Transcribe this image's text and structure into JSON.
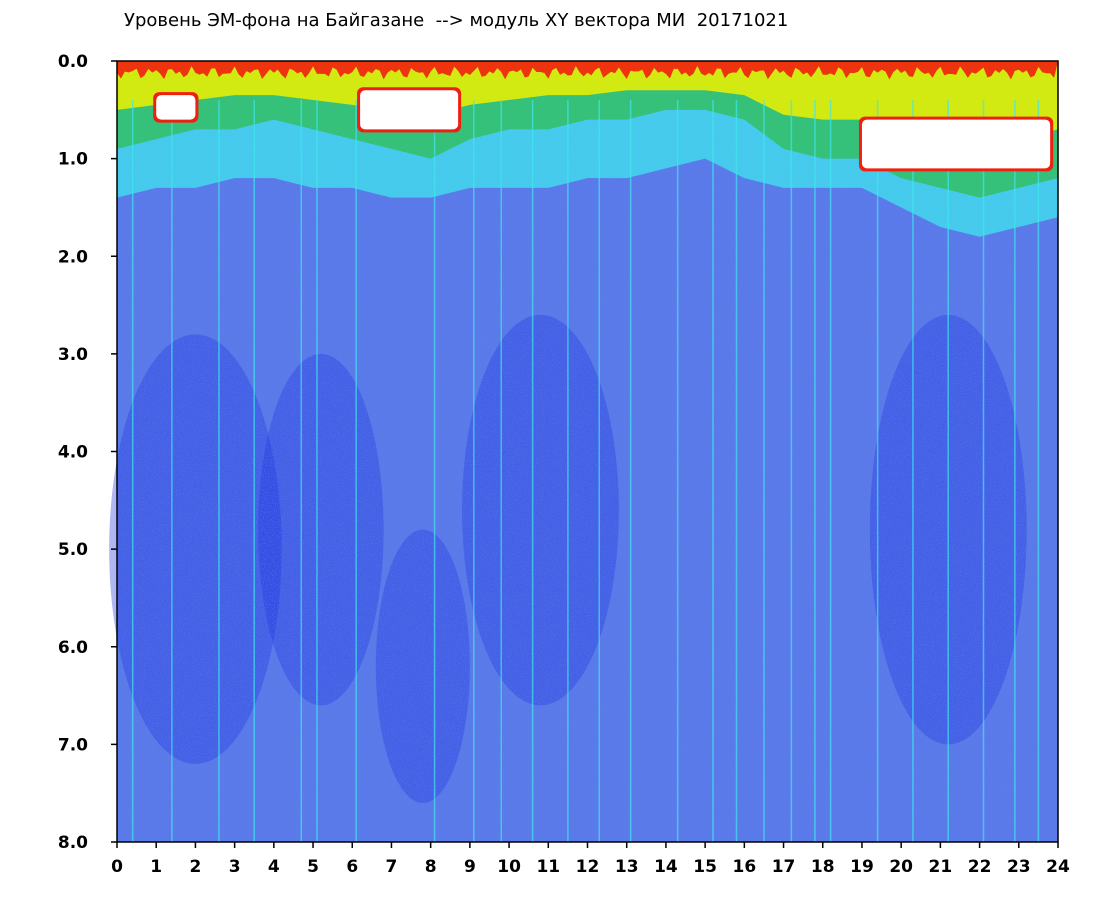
{
  "chart_data": {
    "type": "heatmap",
    "title": "Уровень ЭМ-фона на Байгазане  --> модуль XY вектора МИ  20171021",
    "xlabel": "",
    "ylabel": "",
    "xlim": [
      0,
      24
    ],
    "ylim": [
      0,
      8
    ],
    "y_axis_inverted": true,
    "x_ticks": [
      "0",
      "1",
      "2",
      "3",
      "4",
      "5",
      "6",
      "7",
      "8",
      "9",
      "10",
      "11",
      "12",
      "13",
      "14",
      "15",
      "16",
      "17",
      "18",
      "19",
      "20",
      "21",
      "22",
      "23",
      "24"
    ],
    "y_ticks": [
      "0.0",
      "1.0",
      "2.0",
      "3.0",
      "4.0",
      "5.0",
      "6.0",
      "7.0",
      "8.0"
    ],
    "color_scale": [
      "#1a2ee0",
      "#5b7be8",
      "#9aa6ee",
      "#3fe6ee",
      "#2cbc3c",
      "#eef000",
      "#f02010",
      "#ffffff"
    ],
    "level_profiles": {
      "description": "approximate band boundaries (y values) per hour",
      "hours": [
        0,
        1,
        2,
        3,
        4,
        5,
        6,
        7,
        8,
        9,
        10,
        11,
        12,
        13,
        14,
        15,
        16,
        17,
        18,
        19,
        20,
        21,
        22,
        23,
        24
      ],
      "cyan_bottom": [
        1.4,
        1.3,
        1.3,
        1.2,
        1.2,
        1.3,
        1.3,
        1.4,
        1.4,
        1.3,
        1.3,
        1.3,
        1.2,
        1.2,
        1.1,
        1.0,
        1.2,
        1.3,
        1.3,
        1.3,
        1.5,
        1.7,
        1.8,
        1.7,
        1.6
      ],
      "green_bottom": [
        0.9,
        0.8,
        0.7,
        0.7,
        0.6,
        0.7,
        0.8,
        0.9,
        1.0,
        0.8,
        0.7,
        0.7,
        0.6,
        0.6,
        0.5,
        0.5,
        0.6,
        0.9,
        1.0,
        1.0,
        1.2,
        1.3,
        1.4,
        1.3,
        1.2
      ],
      "yellow_bottom": [
        0.5,
        0.45,
        0.4,
        0.35,
        0.35,
        0.4,
        0.45,
        0.5,
        0.55,
        0.45,
        0.4,
        0.35,
        0.35,
        0.3,
        0.3,
        0.3,
        0.35,
        0.55,
        0.6,
        0.6,
        0.8,
        0.9,
        0.9,
        0.8,
        0.7
      ]
    },
    "saturated_regions": [
      {
        "x": [
          1.0,
          2.0
        ],
        "y": [
          0.35,
          0.6
        ]
      },
      {
        "x": [
          6.2,
          8.7
        ],
        "y": [
          0.3,
          0.7
        ]
      },
      {
        "x": [
          19.0,
          23.8
        ],
        "y": [
          0.6,
          1.1
        ]
      }
    ],
    "vertical_streaks_hours": [
      0.4,
      1.4,
      2.6,
      3.5,
      4.7,
      5.1,
      6.1,
      8.1,
      9.1,
      9.8,
      10.6,
      11.5,
      12.3,
      13.1,
      14.3,
      15.2,
      15.8,
      16.5,
      17.2,
      17.8,
      18.2,
      19.4,
      20.3,
      21.2,
      22.1,
      22.9,
      23.5
    ]
  }
}
